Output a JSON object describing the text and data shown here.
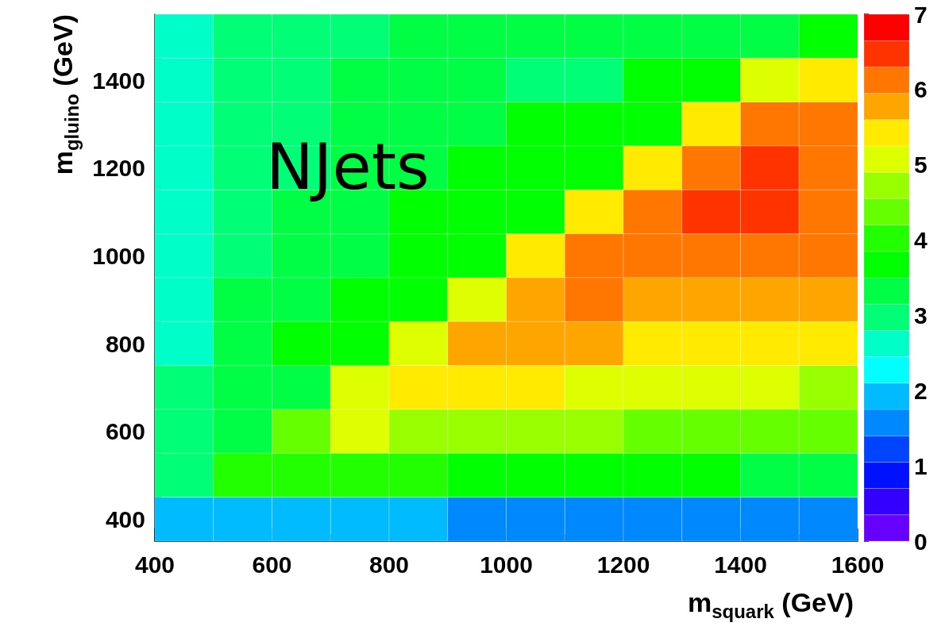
{
  "chart_data": {
    "type": "heatmap",
    "title": "NJets",
    "xlabel": "m$_{squark}$ (GeV)",
    "ylabel": "m$_{gluino}$ (GeV)",
    "x": [
      450,
      550,
      650,
      750,
      850,
      950,
      1050,
      1150,
      1250,
      1350,
      1450,
      1550
    ],
    "y": [
      1500,
      1400,
      1300,
      1200,
      1100,
      1000,
      900,
      800,
      700,
      600,
      500,
      400
    ],
    "cells": [
      [
        2.6,
        3.0,
        3.0,
        3.0,
        3.3,
        3.3,
        3.3,
        3.3,
        3.3,
        3.3,
        3.3,
        3.7
      ],
      [
        2.6,
        3.0,
        3.0,
        3.3,
        3.3,
        3.3,
        3.0,
        3.0,
        3.7,
        3.7,
        5.1,
        5.4
      ],
      [
        2.6,
        3.0,
        3.0,
        3.3,
        3.3,
        3.3,
        3.7,
        3.7,
        3.7,
        5.4,
        6.1,
        6.1
      ],
      [
        2.6,
        3.0,
        3.0,
        3.3,
        3.3,
        3.7,
        3.7,
        3.7,
        5.4,
        6.1,
        6.5,
        6.1
      ],
      [
        2.6,
        3.0,
        3.3,
        3.3,
        3.7,
        3.7,
        3.7,
        5.4,
        6.1,
        6.5,
        6.5,
        6.1
      ],
      [
        2.6,
        3.0,
        3.3,
        3.3,
        3.7,
        3.7,
        5.4,
        6.1,
        6.1,
        6.1,
        6.1,
        6.1
      ],
      [
        2.6,
        3.3,
        3.3,
        3.7,
        3.7,
        5.1,
        5.8,
        6.1,
        5.8,
        5.8,
        5.8,
        5.8
      ],
      [
        2.6,
        3.3,
        3.7,
        3.7,
        5.1,
        5.8,
        5.8,
        5.8,
        5.4,
        5.4,
        5.4,
        5.4
      ],
      [
        3.0,
        3.3,
        3.3,
        5.1,
        5.4,
        5.4,
        5.4,
        5.1,
        5.1,
        5.1,
        5.1,
        4.7
      ],
      [
        3.0,
        3.3,
        4.4,
        5.1,
        4.7,
        4.7,
        4.7,
        4.7,
        4.4,
        4.4,
        4.4,
        4.4
      ],
      [
        3.0,
        4.0,
        4.0,
        4.0,
        4.0,
        3.7,
        3.7,
        3.7,
        3.7,
        3.7,
        3.3,
        3.3
      ],
      [
        1.9,
        1.9,
        1.9,
        1.9,
        1.9,
        1.6,
        1.6,
        1.6,
        1.6,
        1.6,
        1.6,
        1.6
      ]
    ],
    "xlim": [
      400,
      1600
    ],
    "xticks": [
      400,
      600,
      800,
      1000,
      1200,
      1400,
      1600
    ],
    "ylim": [
      350,
      1550
    ],
    "yticks": [
      400,
      600,
      800,
      1000,
      1200,
      1400
    ],
    "clim": [
      0,
      7
    ],
    "cticks": [
      0,
      1,
      2,
      3,
      4,
      5,
      6,
      7
    ],
    "grid": false
  }
}
